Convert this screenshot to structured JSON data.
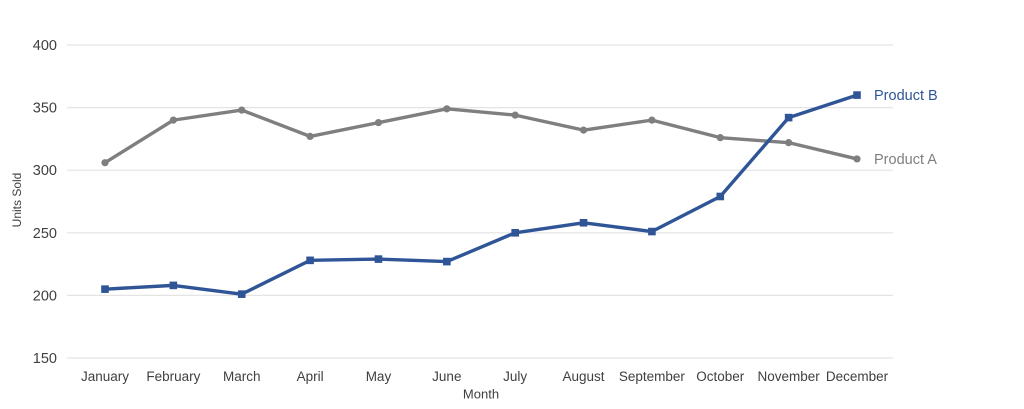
{
  "style": {
    "background": "#ffffff",
    "gridline_color": "#e4e4e4",
    "tick_label_color": "#404040",
    "blue_accent": "#2f5597",
    "gray_accent": "#7f7f7f"
  },
  "chart_data": {
    "type": "line",
    "title": "",
    "xlabel": "Month",
    "ylabel": "Units Sold",
    "categories": [
      "January",
      "February",
      "March",
      "April",
      "May",
      "June",
      "July",
      "August",
      "September",
      "October",
      "November",
      "December"
    ],
    "series": [
      {
        "name": "Product A",
        "color": "#7f7f7f",
        "marker": "circle",
        "values": [
          306,
          340,
          348,
          327,
          338,
          349,
          344,
          332,
          340,
          326,
          322,
          309
        ]
      },
      {
        "name": "Product B",
        "color": "#2f5597",
        "marker": "square",
        "values": [
          205,
          208,
          201,
          228,
          229,
          227,
          250,
          258,
          251,
          279,
          342,
          360
        ]
      }
    ],
    "ylim": [
      150,
      400
    ],
    "yticks": [
      150,
      200,
      250,
      300,
      350,
      400
    ],
    "grid": "horizontal",
    "legend_position": "end-of-line-labels"
  }
}
